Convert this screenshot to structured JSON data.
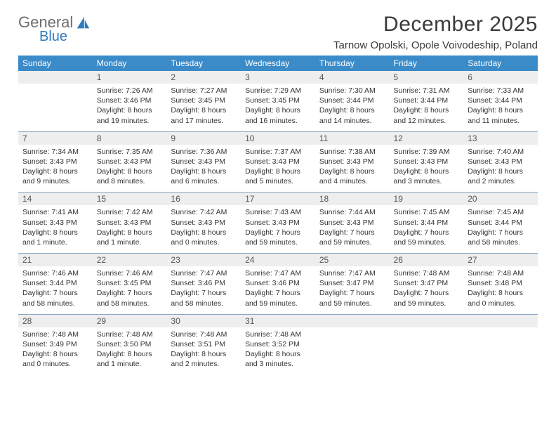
{
  "brand": {
    "word1": "General",
    "word2": "Blue",
    "mark_color": "#2f7bbf",
    "text_gray": "#6e6e6e"
  },
  "title": "December 2025",
  "location": "Tarnow Opolski, Opole Voivodeship, Poland",
  "header_bg": "#3b8bc9",
  "row_divider": "#8aa9c4",
  "daynum_bg": "#eeeeee",
  "weekdays": [
    "Sunday",
    "Monday",
    "Tuesday",
    "Wednesday",
    "Thursday",
    "Friday",
    "Saturday"
  ],
  "weeks": [
    [
      {
        "n": "",
        "lines": []
      },
      {
        "n": "1",
        "lines": [
          "Sunrise: 7:26 AM",
          "Sunset: 3:46 PM",
          "Daylight: 8 hours",
          "and 19 minutes."
        ]
      },
      {
        "n": "2",
        "lines": [
          "Sunrise: 7:27 AM",
          "Sunset: 3:45 PM",
          "Daylight: 8 hours",
          "and 17 minutes."
        ]
      },
      {
        "n": "3",
        "lines": [
          "Sunrise: 7:29 AM",
          "Sunset: 3:45 PM",
          "Daylight: 8 hours",
          "and 16 minutes."
        ]
      },
      {
        "n": "4",
        "lines": [
          "Sunrise: 7:30 AM",
          "Sunset: 3:44 PM",
          "Daylight: 8 hours",
          "and 14 minutes."
        ]
      },
      {
        "n": "5",
        "lines": [
          "Sunrise: 7:31 AM",
          "Sunset: 3:44 PM",
          "Daylight: 8 hours",
          "and 12 minutes."
        ]
      },
      {
        "n": "6",
        "lines": [
          "Sunrise: 7:33 AM",
          "Sunset: 3:44 PM",
          "Daylight: 8 hours",
          "and 11 minutes."
        ]
      }
    ],
    [
      {
        "n": "7",
        "lines": [
          "Sunrise: 7:34 AM",
          "Sunset: 3:43 PM",
          "Daylight: 8 hours",
          "and 9 minutes."
        ]
      },
      {
        "n": "8",
        "lines": [
          "Sunrise: 7:35 AM",
          "Sunset: 3:43 PM",
          "Daylight: 8 hours",
          "and 8 minutes."
        ]
      },
      {
        "n": "9",
        "lines": [
          "Sunrise: 7:36 AM",
          "Sunset: 3:43 PM",
          "Daylight: 8 hours",
          "and 6 minutes."
        ]
      },
      {
        "n": "10",
        "lines": [
          "Sunrise: 7:37 AM",
          "Sunset: 3:43 PM",
          "Daylight: 8 hours",
          "and 5 minutes."
        ]
      },
      {
        "n": "11",
        "lines": [
          "Sunrise: 7:38 AM",
          "Sunset: 3:43 PM",
          "Daylight: 8 hours",
          "and 4 minutes."
        ]
      },
      {
        "n": "12",
        "lines": [
          "Sunrise: 7:39 AM",
          "Sunset: 3:43 PM",
          "Daylight: 8 hours",
          "and 3 minutes."
        ]
      },
      {
        "n": "13",
        "lines": [
          "Sunrise: 7:40 AM",
          "Sunset: 3:43 PM",
          "Daylight: 8 hours",
          "and 2 minutes."
        ]
      }
    ],
    [
      {
        "n": "14",
        "lines": [
          "Sunrise: 7:41 AM",
          "Sunset: 3:43 PM",
          "Daylight: 8 hours",
          "and 1 minute."
        ]
      },
      {
        "n": "15",
        "lines": [
          "Sunrise: 7:42 AM",
          "Sunset: 3:43 PM",
          "Daylight: 8 hours",
          "and 1 minute."
        ]
      },
      {
        "n": "16",
        "lines": [
          "Sunrise: 7:42 AM",
          "Sunset: 3:43 PM",
          "Daylight: 8 hours",
          "and 0 minutes."
        ]
      },
      {
        "n": "17",
        "lines": [
          "Sunrise: 7:43 AM",
          "Sunset: 3:43 PM",
          "Daylight: 7 hours",
          "and 59 minutes."
        ]
      },
      {
        "n": "18",
        "lines": [
          "Sunrise: 7:44 AM",
          "Sunset: 3:43 PM",
          "Daylight: 7 hours",
          "and 59 minutes."
        ]
      },
      {
        "n": "19",
        "lines": [
          "Sunrise: 7:45 AM",
          "Sunset: 3:44 PM",
          "Daylight: 7 hours",
          "and 59 minutes."
        ]
      },
      {
        "n": "20",
        "lines": [
          "Sunrise: 7:45 AM",
          "Sunset: 3:44 PM",
          "Daylight: 7 hours",
          "and 58 minutes."
        ]
      }
    ],
    [
      {
        "n": "21",
        "lines": [
          "Sunrise: 7:46 AM",
          "Sunset: 3:44 PM",
          "Daylight: 7 hours",
          "and 58 minutes."
        ]
      },
      {
        "n": "22",
        "lines": [
          "Sunrise: 7:46 AM",
          "Sunset: 3:45 PM",
          "Daylight: 7 hours",
          "and 58 minutes."
        ]
      },
      {
        "n": "23",
        "lines": [
          "Sunrise: 7:47 AM",
          "Sunset: 3:46 PM",
          "Daylight: 7 hours",
          "and 58 minutes."
        ]
      },
      {
        "n": "24",
        "lines": [
          "Sunrise: 7:47 AM",
          "Sunset: 3:46 PM",
          "Daylight: 7 hours",
          "and 59 minutes."
        ]
      },
      {
        "n": "25",
        "lines": [
          "Sunrise: 7:47 AM",
          "Sunset: 3:47 PM",
          "Daylight: 7 hours",
          "and 59 minutes."
        ]
      },
      {
        "n": "26",
        "lines": [
          "Sunrise: 7:48 AM",
          "Sunset: 3:47 PM",
          "Daylight: 7 hours",
          "and 59 minutes."
        ]
      },
      {
        "n": "27",
        "lines": [
          "Sunrise: 7:48 AM",
          "Sunset: 3:48 PM",
          "Daylight: 8 hours",
          "and 0 minutes."
        ]
      }
    ],
    [
      {
        "n": "28",
        "lines": [
          "Sunrise: 7:48 AM",
          "Sunset: 3:49 PM",
          "Daylight: 8 hours",
          "and 0 minutes."
        ]
      },
      {
        "n": "29",
        "lines": [
          "Sunrise: 7:48 AM",
          "Sunset: 3:50 PM",
          "Daylight: 8 hours",
          "and 1 minute."
        ]
      },
      {
        "n": "30",
        "lines": [
          "Sunrise: 7:48 AM",
          "Sunset: 3:51 PM",
          "Daylight: 8 hours",
          "and 2 minutes."
        ]
      },
      {
        "n": "31",
        "lines": [
          "Sunrise: 7:48 AM",
          "Sunset: 3:52 PM",
          "Daylight: 8 hours",
          "and 3 minutes."
        ]
      },
      {
        "n": "",
        "lines": []
      },
      {
        "n": "",
        "lines": []
      },
      {
        "n": "",
        "lines": []
      }
    ]
  ]
}
